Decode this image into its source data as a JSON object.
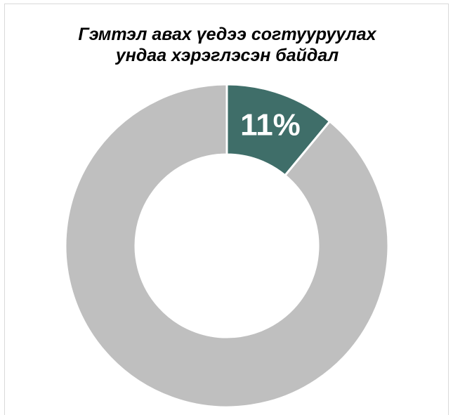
{
  "chart_data": {
    "type": "pie",
    "variant": "donut",
    "title_lines": [
      "Гэмтэл авах үедээ согтууруулах",
      "ундаа хэрэглэсэн байдал"
    ],
    "slices": [
      {
        "value": 11,
        "label": "11%",
        "color": "#3f6e69"
      },
      {
        "value": 89,
        "label": "",
        "color": "#bfbfbf"
      }
    ],
    "start_angle_deg": 0,
    "legend": "none"
  }
}
